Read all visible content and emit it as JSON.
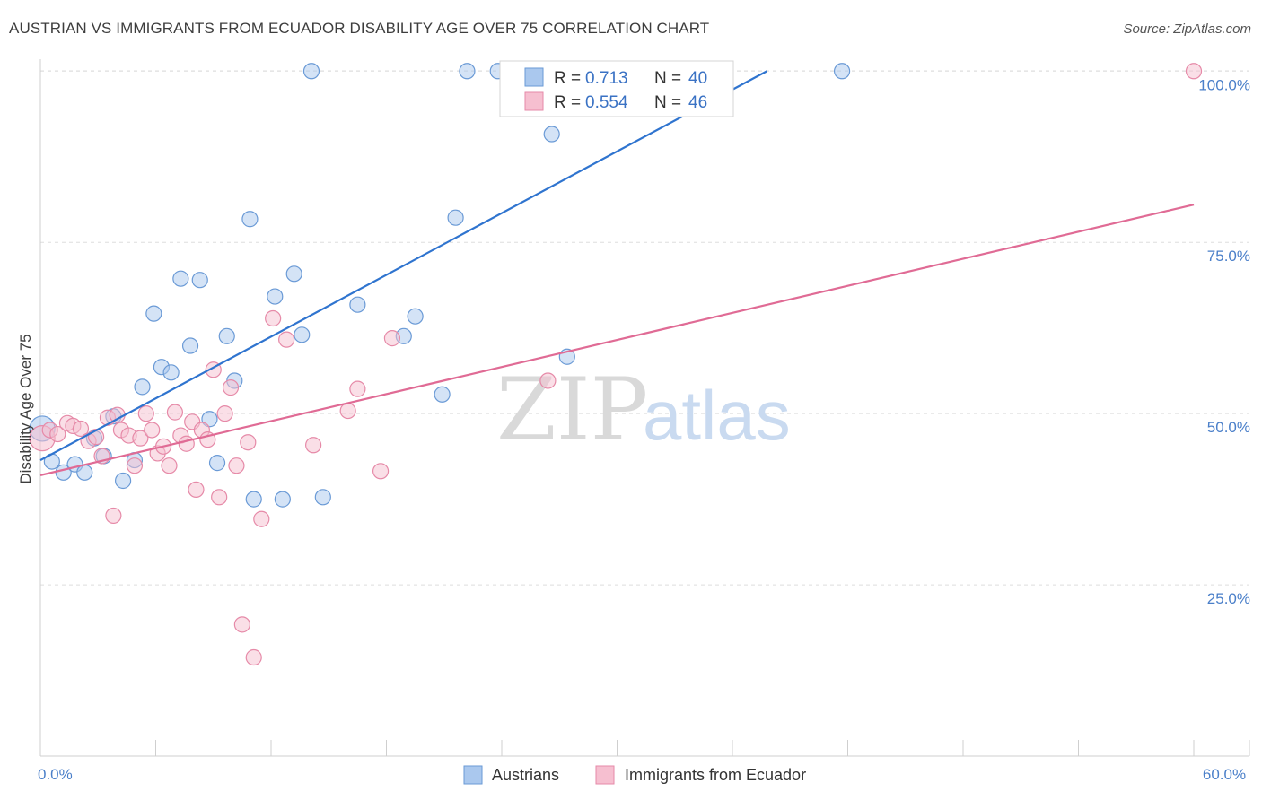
{
  "title": "AUSTRIAN VS IMMIGRANTS FROM ECUADOR DISABILITY AGE OVER 75 CORRELATION CHART",
  "source": "Source: ZipAtlas.com",
  "watermark": {
    "zip": "ZIP",
    "atlas": "atlas"
  },
  "legend_top": {
    "rows": [
      {
        "r_label": "R =",
        "r_value": "0.713",
        "n_label": "N =",
        "n_value": "40"
      },
      {
        "r_label": "R =",
        "r_value": "0.554",
        "n_label": "N =",
        "n_value": "46"
      }
    ]
  },
  "colors": {
    "blue_fill": "#aac8ee",
    "blue_stroke": "#6a9ad6",
    "blue_line": "#2f74cf",
    "pink_fill": "#f6bfd0",
    "pink_stroke": "#e68aa8",
    "pink_line": "#e06b95",
    "grid": "#dedede",
    "tick_label": "#4a7fc9"
  },
  "chart_data": {
    "type": "scatter",
    "title": "AUSTRIAN VS IMMIGRANTS FROM ECUADOR DISABILITY AGE OVER 75 CORRELATION CHART",
    "xlabel": "",
    "ylabel": "Disability Age Over 75",
    "xlim": [
      0,
      60
    ],
    "ylim": [
      0,
      102
    ],
    "x_ticks": [
      {
        "value": 0,
        "label": "0.0%"
      },
      {
        "value": 60,
        "label": "60.0%"
      }
    ],
    "y_ticks": [
      {
        "value": 100,
        "label": "100.0%"
      },
      {
        "value": 75,
        "label": "75.0%"
      },
      {
        "value": 50,
        "label": "50.0%"
      },
      {
        "value": 25,
        "label": "25.0%"
      }
    ],
    "grid": true,
    "legend_position": "bottom",
    "series": [
      {
        "name": "Austrians",
        "color": "#aac8ee",
        "trend": {
          "x0": 0.0,
          "y0": 43.2,
          "x1": 37.8,
          "y1": 100.0
        },
        "points": [
          [
            0.1,
            47.8
          ],
          [
            0.6,
            43.0
          ],
          [
            1.2,
            41.4
          ],
          [
            1.8,
            42.6
          ],
          [
            2.3,
            41.4
          ],
          [
            2.8,
            46.4
          ],
          [
            3.3,
            43.8
          ],
          [
            3.8,
            49.6
          ],
          [
            4.3,
            40.2
          ],
          [
            4.9,
            43.2
          ],
          [
            5.3,
            53.9
          ],
          [
            5.9,
            64.6
          ],
          [
            6.3,
            56.8
          ],
          [
            6.8,
            56.0
          ],
          [
            7.3,
            69.7
          ],
          [
            7.8,
            59.9
          ],
          [
            8.3,
            69.5
          ],
          [
            8.8,
            49.2
          ],
          [
            9.2,
            42.8
          ],
          [
            9.7,
            61.3
          ],
          [
            10.1,
            54.8
          ],
          [
            10.9,
            78.4
          ],
          [
            11.1,
            37.5
          ],
          [
            12.2,
            67.1
          ],
          [
            12.6,
            37.5
          ],
          [
            13.2,
            70.4
          ],
          [
            13.6,
            61.5
          ],
          [
            14.1,
            100.0
          ],
          [
            14.7,
            37.8
          ],
          [
            16.5,
            65.9
          ],
          [
            18.9,
            61.3
          ],
          [
            19.5,
            64.2
          ],
          [
            20.9,
            52.8
          ],
          [
            21.6,
            78.6
          ],
          [
            22.2,
            100.0
          ],
          [
            23.8,
            100.0
          ],
          [
            26.6,
            90.8
          ],
          [
            27.4,
            58.3
          ],
          [
            29.4,
            100.0
          ],
          [
            41.7,
            100.0
          ]
        ]
      },
      {
        "name": "Immigrants from Ecuador",
        "color": "#f6bfd0",
        "trend": {
          "x0": 0.0,
          "y0": 41.0,
          "x1": 60.0,
          "y1": 80.5
        },
        "points": [
          [
            0.1,
            46.4
          ],
          [
            0.5,
            47.6
          ],
          [
            0.9,
            47.0
          ],
          [
            1.4,
            48.6
          ],
          [
            1.7,
            48.2
          ],
          [
            2.1,
            47.8
          ],
          [
            2.5,
            46.0
          ],
          [
            2.9,
            46.6
          ],
          [
            3.2,
            43.8
          ],
          [
            3.5,
            49.4
          ],
          [
            3.8,
            35.1
          ],
          [
            4.0,
            49.8
          ],
          [
            4.2,
            47.6
          ],
          [
            4.6,
            46.8
          ],
          [
            4.9,
            42.4
          ],
          [
            5.2,
            46.4
          ],
          [
            5.5,
            50.0
          ],
          [
            5.8,
            47.6
          ],
          [
            6.1,
            44.2
          ],
          [
            6.4,
            45.2
          ],
          [
            6.7,
            42.4
          ],
          [
            7.0,
            50.2
          ],
          [
            7.3,
            46.8
          ],
          [
            7.6,
            45.6
          ],
          [
            7.9,
            48.8
          ],
          [
            8.1,
            38.9
          ],
          [
            8.4,
            47.6
          ],
          [
            8.7,
            46.2
          ],
          [
            9.0,
            56.4
          ],
          [
            9.3,
            37.8
          ],
          [
            9.6,
            50.0
          ],
          [
            9.9,
            53.8
          ],
          [
            10.2,
            42.4
          ],
          [
            10.5,
            19.2
          ],
          [
            10.8,
            45.8
          ],
          [
            11.1,
            14.4
          ],
          [
            11.5,
            34.6
          ],
          [
            12.1,
            63.9
          ],
          [
            12.8,
            60.8
          ],
          [
            14.2,
            45.4
          ],
          [
            16.0,
            50.4
          ],
          [
            16.5,
            53.6
          ],
          [
            17.7,
            41.6
          ],
          [
            18.3,
            61.0
          ],
          [
            26.4,
            54.8
          ],
          [
            60.0,
            100.0
          ]
        ]
      }
    ]
  }
}
